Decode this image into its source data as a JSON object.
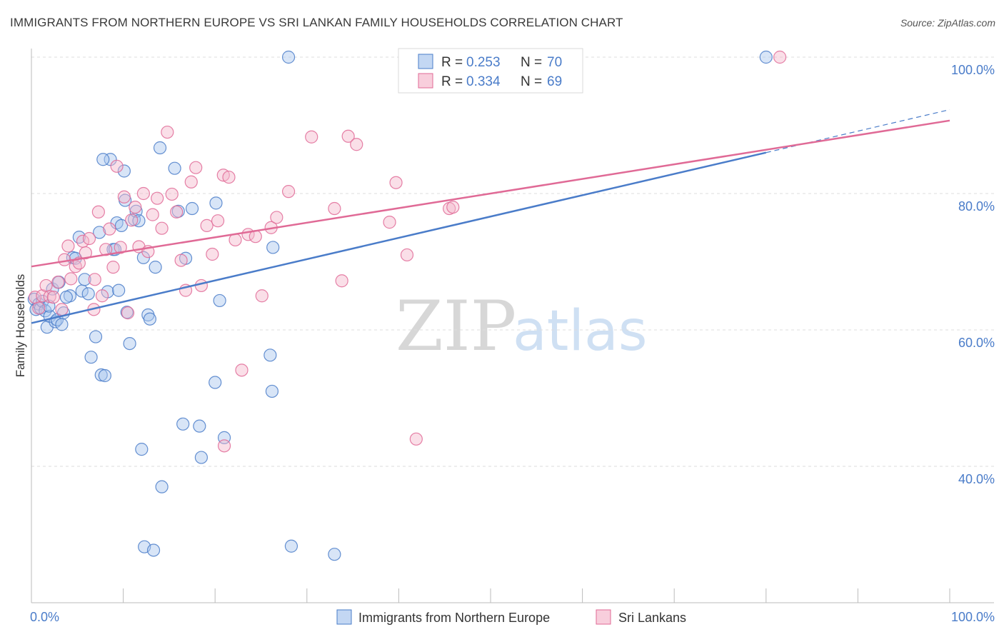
{
  "title": "IMMIGRANTS FROM NORTHERN EUROPE VS SRI LANKAN FAMILY HOUSEHOLDS CORRELATION CHART",
  "source": "Source: ZipAtlas.com",
  "colors": {
    "blue": "#4a7cc9",
    "blue_fill": "#a9c6ee",
    "pink": "#e06a96",
    "pink_fill": "#f5b9cd",
    "grid": "#dddddd"
  },
  "legend": {
    "r_label": "R =",
    "n_label": "N =",
    "series": [
      {
        "r": "0.253",
        "n": "70"
      },
      {
        "r": "0.334",
        "n": "69"
      }
    ]
  },
  "watermark": {
    "zip": "ZIP",
    "atlas": "atlas"
  },
  "chart_data": {
    "type": "scatter",
    "ylabel": "Family Households",
    "xlim": [
      0,
      100
    ],
    "ylim": [
      20,
      100
    ],
    "x_tick_labels": [
      "0.0%",
      "100.0%"
    ],
    "y_ticks": [
      40,
      60,
      80,
      100
    ],
    "y_tick_labels": [
      "40.0%",
      "60.0%",
      "80.0%",
      "100.0%"
    ],
    "grid": true,
    "legend_position": "top-center",
    "series": [
      {
        "name": "Immigrants from Northern Europe",
        "color": "#4a7cc9",
        "r": 0.253,
        "n": 70,
        "trend": {
          "x0": 0,
          "y0": 61.0,
          "x1": 80,
          "y1": 86.0,
          "dash_to_x": 100,
          "dash_to_y": 92.3
        },
        "points": [
          [
            0.3,
            64.5
          ],
          [
            0.5,
            63.0
          ],
          [
            0.8,
            63.8
          ],
          [
            1.0,
            63.2
          ],
          [
            1.2,
            64.2
          ],
          [
            1.5,
            62.8
          ],
          [
            1.7,
            60.4
          ],
          [
            2.0,
            62.0
          ],
          [
            2.3,
            66.0
          ],
          [
            2.6,
            61.2
          ],
          [
            2.8,
            61.5
          ],
          [
            3.0,
            67.0
          ],
          [
            3.3,
            60.8
          ],
          [
            3.5,
            62.5
          ],
          [
            4.2,
            65.0
          ],
          [
            4.5,
            70.6
          ],
          [
            5.2,
            73.6
          ],
          [
            5.5,
            65.7
          ],
          [
            5.8,
            67.4
          ],
          [
            6.2,
            65.3
          ],
          [
            6.5,
            56.0
          ],
          [
            7.0,
            59.0
          ],
          [
            7.4,
            74.3
          ],
          [
            7.6,
            53.4
          ],
          [
            8.0,
            53.3
          ],
          [
            8.3,
            65.6
          ],
          [
            8.6,
            85.0
          ],
          [
            8.9,
            71.8
          ],
          [
            9.3,
            75.7
          ],
          [
            9.5,
            65.8
          ],
          [
            9.8,
            75.3
          ],
          [
            10.1,
            83.3
          ],
          [
            10.2,
            79.0
          ],
          [
            10.4,
            62.6
          ],
          [
            10.7,
            58.0
          ],
          [
            11.2,
            76.2
          ],
          [
            11.4,
            77.4
          ],
          [
            11.7,
            76.0
          ],
          [
            12.2,
            70.6
          ],
          [
            12.7,
            62.2
          ],
          [
            12.9,
            61.6
          ],
          [
            13.5,
            69.2
          ],
          [
            14.0,
            86.7
          ],
          [
            14.2,
            37.0
          ],
          [
            15.6,
            83.7
          ],
          [
            16.5,
            46.2
          ],
          [
            16.8,
            70.5
          ],
          [
            17.5,
            77.8
          ],
          [
            18.3,
            45.9
          ],
          [
            18.5,
            41.3
          ],
          [
            20.1,
            78.6
          ],
          [
            20.5,
            64.3
          ],
          [
            21.0,
            44.2
          ],
          [
            20.0,
            52.3
          ],
          [
            26.3,
            72.1
          ],
          [
            26.0,
            56.3
          ],
          [
            26.2,
            51.0
          ],
          [
            28.0,
            100.0
          ],
          [
            28.3,
            28.3
          ],
          [
            33.0,
            27.1
          ],
          [
            12.0,
            42.5
          ],
          [
            12.3,
            28.2
          ],
          [
            13.3,
            27.7
          ],
          [
            7.8,
            85.0
          ],
          [
            80.0,
            100.0
          ],
          [
            3.8,
            64.8
          ],
          [
            1.9,
            63.5
          ],
          [
            4.8,
            70.5
          ],
          [
            9.1,
            71.8
          ],
          [
            16.0,
            77.4
          ]
        ]
      },
      {
        "name": "Sri Lankans",
        "color": "#e06a96",
        "r": 0.334,
        "n": 69,
        "trend": {
          "x0": 0,
          "y0": 69.3,
          "x1": 100,
          "y1": 90.7
        },
        "points": [
          [
            0.4,
            64.8
          ],
          [
            0.8,
            63.2
          ],
          [
            1.2,
            65.0
          ],
          [
            1.6,
            66.5
          ],
          [
            2.0,
            64.9
          ],
          [
            2.4,
            64.8
          ],
          [
            2.9,
            67.0
          ],
          [
            3.3,
            63.0
          ],
          [
            3.6,
            70.3
          ],
          [
            4.0,
            72.3
          ],
          [
            4.3,
            67.5
          ],
          [
            4.8,
            69.3
          ],
          [
            5.2,
            69.8
          ],
          [
            5.6,
            73.0
          ],
          [
            5.9,
            71.3
          ],
          [
            6.3,
            73.4
          ],
          [
            6.8,
            63.0
          ],
          [
            7.3,
            77.3
          ],
          [
            7.7,
            65.0
          ],
          [
            8.1,
            71.8
          ],
          [
            8.5,
            74.8
          ],
          [
            8.9,
            69.2
          ],
          [
            9.3,
            84.0
          ],
          [
            9.7,
            72.1
          ],
          [
            10.1,
            79.5
          ],
          [
            10.5,
            62.5
          ],
          [
            10.9,
            76.1
          ],
          [
            11.3,
            78.0
          ],
          [
            11.7,
            72.2
          ],
          [
            12.2,
            80.0
          ],
          [
            12.7,
            71.5
          ],
          [
            13.2,
            76.9
          ],
          [
            13.7,
            79.3
          ],
          [
            14.2,
            74.9
          ],
          [
            14.8,
            89.0
          ],
          [
            15.3,
            79.9
          ],
          [
            15.8,
            77.3
          ],
          [
            16.3,
            70.2
          ],
          [
            16.8,
            65.8
          ],
          [
            17.4,
            81.7
          ],
          [
            17.9,
            83.8
          ],
          [
            18.5,
            66.5
          ],
          [
            19.1,
            75.3
          ],
          [
            19.7,
            71.1
          ],
          [
            20.3,
            76.0
          ],
          [
            20.9,
            82.7
          ],
          [
            21.5,
            82.4
          ],
          [
            22.2,
            73.2
          ],
          [
            22.9,
            54.1
          ],
          [
            23.6,
            74.0
          ],
          [
            24.4,
            73.7
          ],
          [
            25.1,
            65.0
          ],
          [
            26.1,
            75.0
          ],
          [
            26.7,
            76.5
          ],
          [
            28.0,
            80.3
          ],
          [
            30.5,
            88.3
          ],
          [
            33.0,
            77.8
          ],
          [
            33.8,
            67.2
          ],
          [
            34.5,
            88.4
          ],
          [
            35.4,
            87.2
          ],
          [
            39.0,
            75.8
          ],
          [
            39.7,
            81.6
          ],
          [
            40.9,
            71.0
          ],
          [
            45.5,
            77.8
          ],
          [
            45.9,
            78.0
          ],
          [
            41.9,
            44.0
          ],
          [
            21.0,
            43.0
          ],
          [
            81.5,
            100.0
          ],
          [
            6.9,
            67.4
          ]
        ]
      }
    ]
  }
}
